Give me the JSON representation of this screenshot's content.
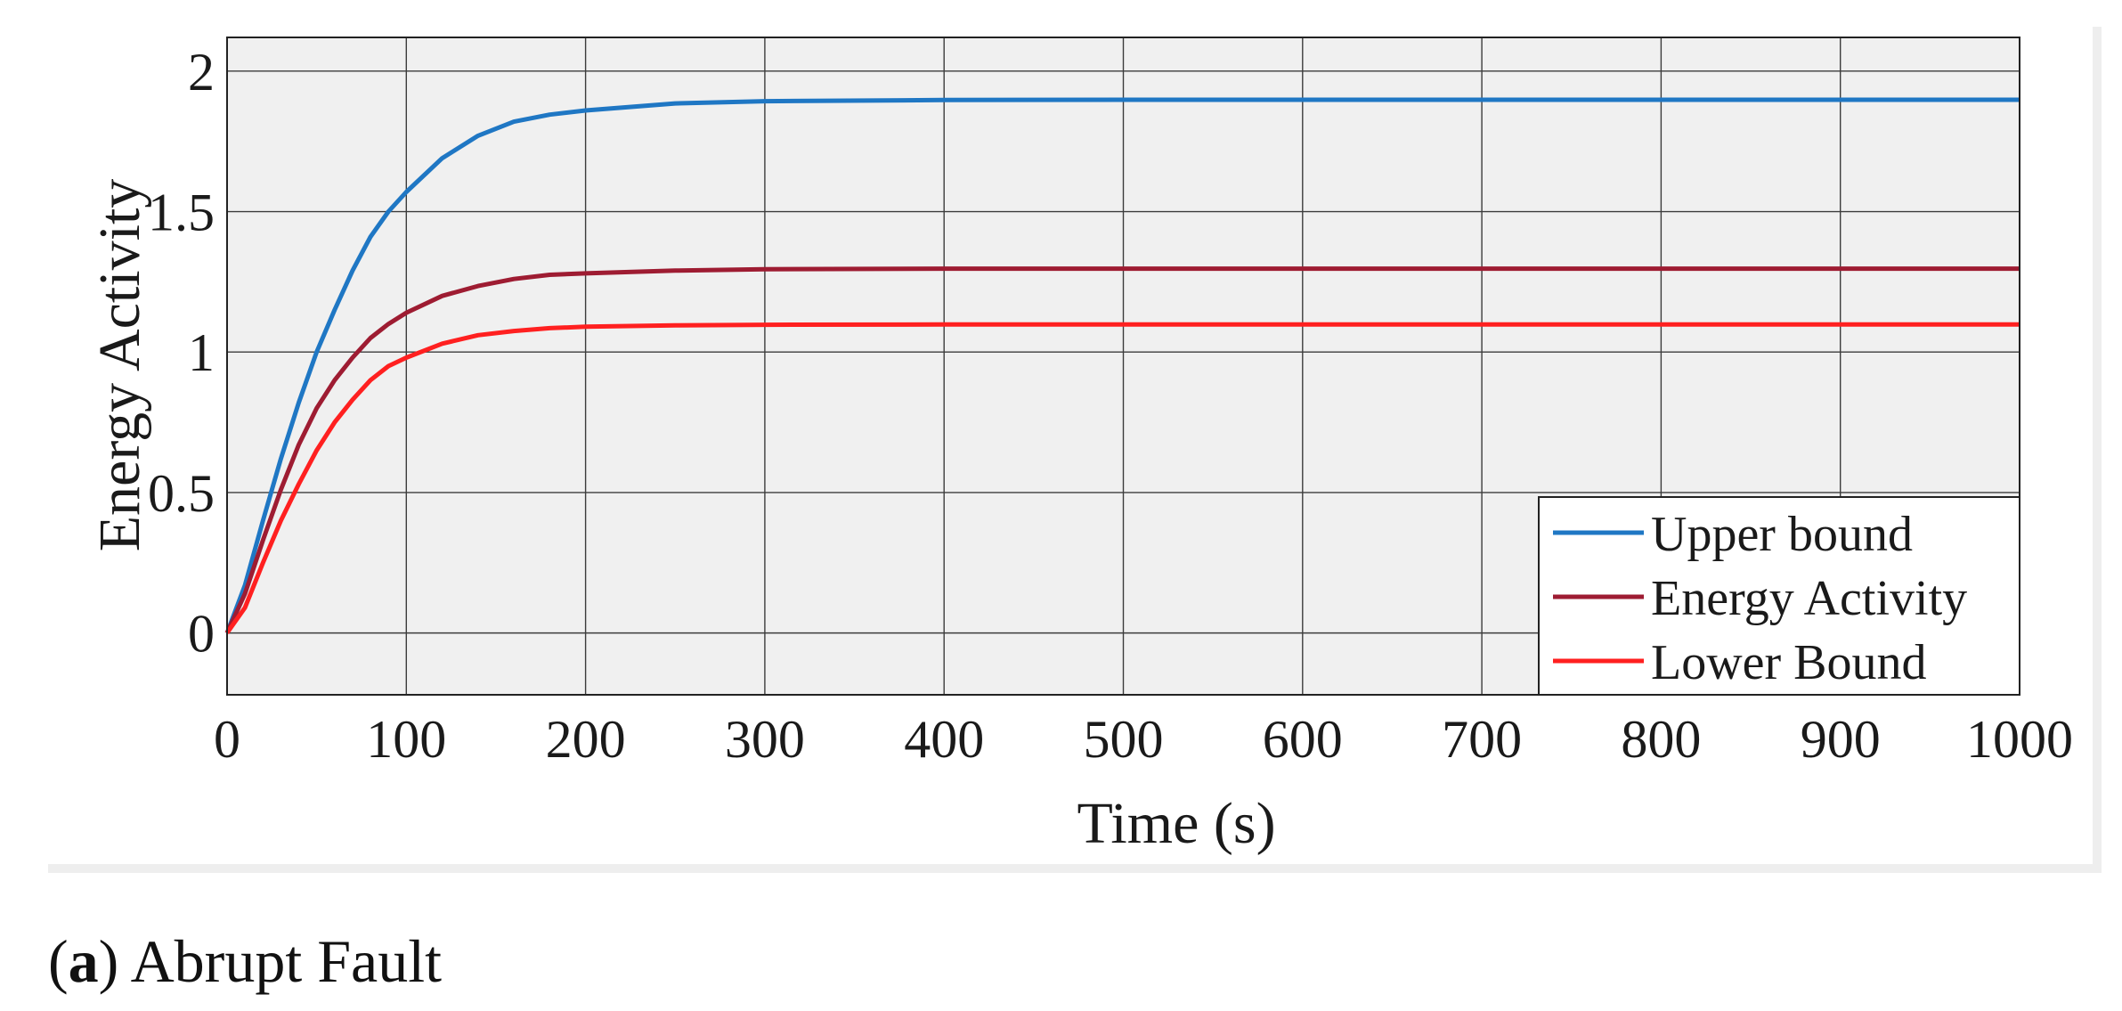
{
  "chart_data": {
    "type": "line",
    "xlabel": "Time (s)",
    "ylabel": "Energy Activity",
    "xlim": [
      0,
      1000
    ],
    "ylim": [
      -0.22,
      2.12
    ],
    "x_ticks": [
      0,
      100,
      200,
      300,
      400,
      500,
      600,
      700,
      800,
      900,
      1000
    ],
    "y_ticks": [
      0,
      0.5,
      1,
      1.5,
      2
    ],
    "x_tick_labels": [
      "0",
      "100",
      "200",
      "300",
      "400",
      "500",
      "600",
      "700",
      "800",
      "900",
      "1000"
    ],
    "y_tick_labels": [
      "0",
      "0.5",
      "1",
      "1.5",
      "2"
    ],
    "grid": true,
    "legend_position": "bottom-right",
    "series": [
      {
        "name": "Upper bound",
        "color": "#1f77c4",
        "x": [
          0,
          10,
          20,
          30,
          40,
          50,
          60,
          70,
          80,
          90,
          100,
          120,
          140,
          160,
          180,
          200,
          250,
          300,
          400,
          500,
          600,
          700,
          800,
          900,
          1000
        ],
        "y": [
          0,
          0.17,
          0.4,
          0.62,
          0.82,
          1.0,
          1.15,
          1.29,
          1.41,
          1.5,
          1.57,
          1.69,
          1.77,
          1.82,
          1.845,
          1.86,
          1.885,
          1.893,
          1.897,
          1.898,
          1.898,
          1.898,
          1.898,
          1.898,
          1.898
        ]
      },
      {
        "name": "Energy Activity",
        "color": "#9e1c32",
        "x": [
          0,
          10,
          20,
          30,
          40,
          50,
          60,
          70,
          80,
          90,
          100,
          120,
          140,
          160,
          180,
          200,
          250,
          300,
          400,
          500,
          600,
          700,
          800,
          900,
          1000
        ],
        "y": [
          0,
          0.14,
          0.33,
          0.51,
          0.67,
          0.8,
          0.9,
          0.98,
          1.05,
          1.1,
          1.14,
          1.2,
          1.235,
          1.26,
          1.275,
          1.28,
          1.29,
          1.295,
          1.297,
          1.297,
          1.297,
          1.297,
          1.297,
          1.297,
          1.297
        ]
      },
      {
        "name": "Lower Bound",
        "color": "#ff2020",
        "x": [
          0,
          10,
          20,
          30,
          40,
          50,
          60,
          70,
          80,
          90,
          100,
          120,
          140,
          160,
          180,
          200,
          250,
          300,
          400,
          500,
          600,
          700,
          800,
          900,
          1000
        ],
        "y": [
          0,
          0.09,
          0.25,
          0.4,
          0.53,
          0.65,
          0.75,
          0.83,
          0.9,
          0.95,
          0.98,
          1.03,
          1.06,
          1.075,
          1.085,
          1.09,
          1.095,
          1.097,
          1.098,
          1.098,
          1.098,
          1.098,
          1.098,
          1.098,
          1.098
        ]
      }
    ]
  },
  "caption": {
    "label": "a",
    "text": "Abrupt Fault"
  }
}
